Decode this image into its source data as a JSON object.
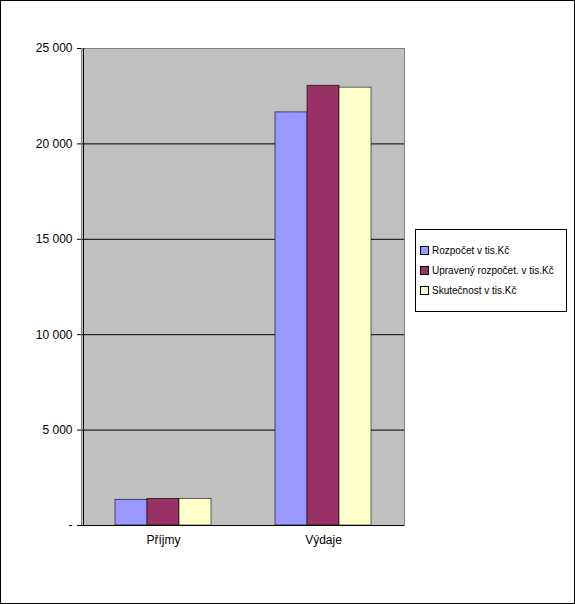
{
  "chart_data": {
    "type": "bar",
    "categories": [
      "Příjmy",
      "Výdaje"
    ],
    "series": [
      {
        "name": "Rozpočet v tis.Kč",
        "color": "#9999ff",
        "values": [
          1350,
          21650
        ]
      },
      {
        "name": "Upravený rozpočet. v tis.Kč",
        "color": "#993366",
        "values": [
          1400,
          23050
        ]
      },
      {
        "name": "Skutečnost v tis.Kč",
        "color": "#ffffcc",
        "values": [
          1400,
          22950
        ]
      }
    ],
    "ylim": [
      0,
      25000
    ],
    "yticks": [
      {
        "value": 0,
        "label": "-"
      },
      {
        "value": 5000,
        "label": "5 000"
      },
      {
        "value": 10000,
        "label": "10 000"
      },
      {
        "value": 15000,
        "label": "15 000"
      },
      {
        "value": 20000,
        "label": "20 000"
      },
      {
        "value": 25000,
        "label": "25 000"
      }
    ],
    "grid": true,
    "legend": "right"
  }
}
